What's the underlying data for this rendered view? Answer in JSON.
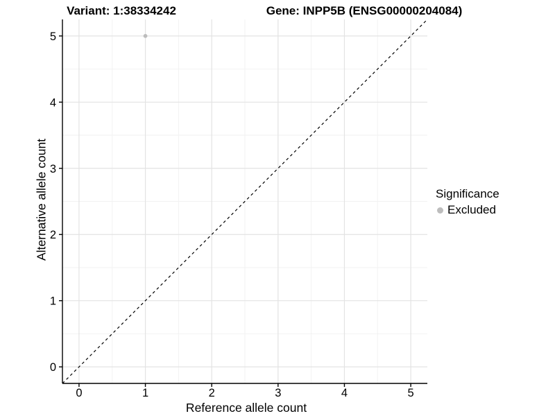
{
  "titles": {
    "variant": "Variant: 1:38334242",
    "gene": "Gene: INPP5B (ENSG00000204084)"
  },
  "chart_data": {
    "type": "scatter",
    "title_left": "Variant: 1:38334242",
    "title_right": "Gene: INPP5B (ENSG00000204084)",
    "xlabel": "Reference allele count",
    "ylabel": "Alternative allele count",
    "xlim": [
      -0.25,
      5.25
    ],
    "ylim": [
      -0.25,
      5.25
    ],
    "x_ticks": [
      0,
      1,
      2,
      3,
      4,
      5
    ],
    "y_ticks": [
      0,
      1,
      2,
      3,
      4,
      5
    ],
    "x_minor_ticks": [
      0.5,
      1.5,
      2.5,
      3.5,
      4.5
    ],
    "y_minor_ticks": [
      0.5,
      1.5,
      2.5,
      3.5,
      4.5
    ],
    "grid": true,
    "identity_line": {
      "style": "dashed",
      "x1": -0.25,
      "y1": -0.25,
      "x2": 5.25,
      "y2": 5.25
    },
    "series": [
      {
        "name": "Excluded",
        "color": "#bdbdbd",
        "points": [
          {
            "x": 1,
            "y": 5
          }
        ]
      }
    ],
    "legend": {
      "position": "right",
      "title": "Significance",
      "items": [
        {
          "label": "Excluded",
          "color": "#bdbdbd"
        }
      ]
    },
    "colors": {
      "grid_major": "#e3e3e3",
      "grid_minor": "#f2f2f2",
      "axis": "#000000",
      "identity_line": "#000000",
      "point": "#bdbdbd",
      "background": "#ffffff"
    }
  }
}
